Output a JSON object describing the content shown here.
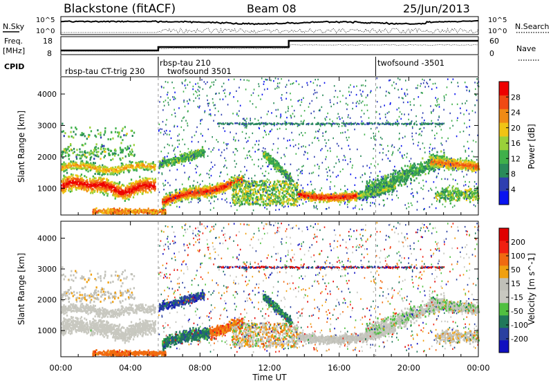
{
  "header": {
    "station": "Blackstone (fitACF)",
    "beam": "Beam 08",
    "date": "25/Jun/2013"
  },
  "top_panels": {
    "nsky": {
      "label": "N.Sky",
      "right_label": "N.Search",
      "left_ticks": [
        "10^5",
        "10^0"
      ],
      "right_ticks": [
        "10^5",
        "10^0"
      ]
    },
    "freq": {
      "label_line1": "Freq.",
      "label_line2": "[MHz]",
      "right_label": "Nave",
      "left_ticks": [
        "18",
        "8"
      ],
      "right_ticks": [
        "60",
        "0"
      ]
    },
    "cpid": {
      "label": "CPID",
      "modes": [
        {
          "text": "rbsp-tau CT-trig 230",
          "start_h": 0.0
        },
        {
          "text": "rbsp-tau 210",
          "start_h": 5.6
        },
        {
          "text": "twofsound 3501",
          "start_h": 5.6
        },
        {
          "text": "twofsound -3501",
          "start_h": 18.1
        }
      ]
    }
  },
  "chart_data": [
    {
      "type": "heatmap",
      "name": "power",
      "ylabel": "Slant Range [km]",
      "ylim": [
        150,
        4550
      ],
      "yticks": [
        "1000",
        "2000",
        "3000",
        "4000"
      ],
      "ytick_values": [
        1000,
        2000,
        3000,
        4000
      ],
      "xlim_hours": [
        0,
        24
      ],
      "colorbar": {
        "label": "Power [dB]",
        "ticks": [
          "4",
          "8",
          "12",
          "16",
          "20",
          "24",
          "28"
        ],
        "tick_values": [
          4,
          8,
          12,
          16,
          20,
          24,
          28
        ],
        "range": [
          0,
          32
        ],
        "colors": [
          "#0a14f0",
          "#2f3fb0",
          "#2a8a5a",
          "#3fb04a",
          "#9ad03a",
          "#f0c414",
          "#f08a14",
          "#f04a14",
          "#ee0000"
        ]
      }
    },
    {
      "type": "heatmap",
      "name": "velocity",
      "ylabel": "Slant Range [km]",
      "xlabel": "Time UT",
      "ylim": [
        150,
        4550
      ],
      "yticks": [
        "1000",
        "2000",
        "3000",
        "4000"
      ],
      "ytick_values": [
        1000,
        2000,
        3000,
        4000
      ],
      "xlim_hours": [
        0,
        24
      ],
      "xticks": [
        "00:00",
        "04:00",
        "08:00",
        "12:00",
        "16:00",
        "20:00",
        "00:00"
      ],
      "xtick_hours": [
        0,
        4,
        8,
        12,
        16,
        20,
        24
      ],
      "colorbar": {
        "label": "Velocity [m s^-1]",
        "ticks": [
          "200",
          "100",
          "50",
          "15",
          "-15",
          "-50",
          "-100",
          "-200"
        ],
        "colors": [
          "#1010c0",
          "#2a40a0",
          "#20785a",
          "#50c040",
          "#c8c8c0",
          "#c0c0b8",
          "#f0a010",
          "#f06a10",
          "#f02010",
          "#e00000"
        ]
      }
    }
  ]
}
